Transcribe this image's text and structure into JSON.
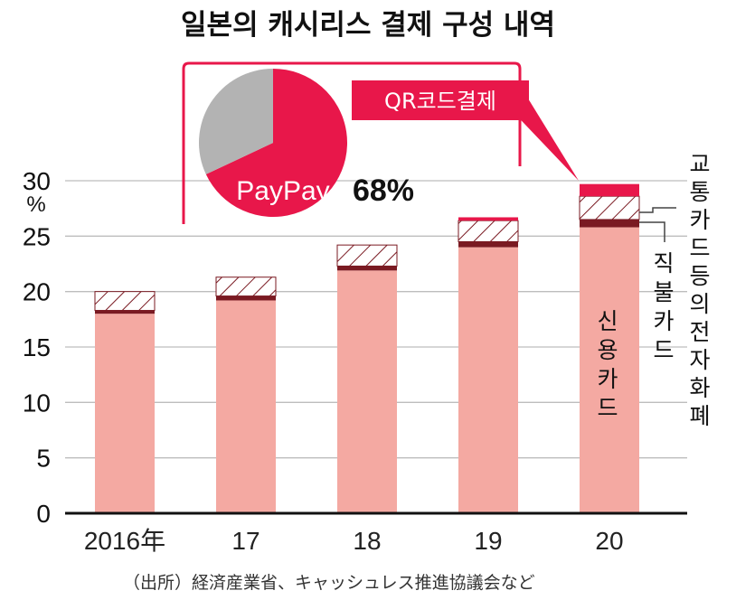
{
  "title": "일본의 캐시리스 결제 구성 내역",
  "source": "（出所）経済産業省、キャッシュレス推進協議会など",
  "colors": {
    "credit": "#f4a9a2",
    "debit": "#7a1a22",
    "emoney": "#ffffff",
    "qr": "#e8174a",
    "pie_rest": "#b3b3b3",
    "frame": "#e8174a"
  },
  "chart_data": {
    "type": "bar",
    "stacked": true,
    "categories": [
      "2016年",
      "17",
      "18",
      "19",
      "20"
    ],
    "unit_label": "%",
    "ylim": [
      0,
      30
    ],
    "yticks": [
      0,
      5,
      10,
      15,
      20,
      25,
      30
    ],
    "series": [
      {
        "name": "신용카드",
        "values": [
          18.0,
          19.2,
          21.9,
          24.0,
          25.8
        ]
      },
      {
        "name": "직불카드",
        "values": [
          0.3,
          0.4,
          0.4,
          0.5,
          0.7
        ]
      },
      {
        "name": "교통카드등의전자화폐",
        "values": [
          1.7,
          1.7,
          1.9,
          1.9,
          2.1
        ]
      },
      {
        "name": "QR코드결제",
        "values": [
          0.0,
          0.0,
          0.0,
          0.3,
          1.1
        ]
      }
    ],
    "inset_pie": {
      "label": "QR코드결제",
      "slices": [
        {
          "name": "PayPay",
          "value": 68
        },
        {
          "name": "",
          "value": 32
        }
      ],
      "value_label": "68%"
    }
  }
}
